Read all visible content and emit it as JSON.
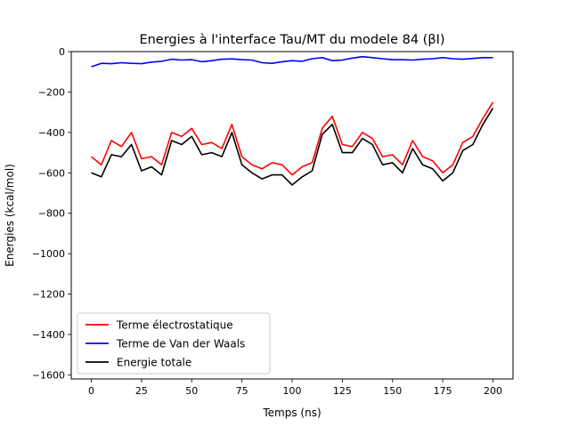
{
  "chart_data": {
    "type": "line",
    "title": "Energies à l'interface Tau/MT du modele 84 (βI)",
    "xlabel": "Temps (ns)",
    "ylabel": "Energies (kcal/mol)",
    "xlim": [
      -10,
      210
    ],
    "ylim": [
      -1620,
      0
    ],
    "xticks": [
      0,
      25,
      50,
      75,
      100,
      125,
      150,
      175,
      200
    ],
    "yticks": [
      0,
      -200,
      -400,
      -600,
      -800,
      -1000,
      -1200,
      -1400,
      -1600
    ],
    "xtick_labels": [
      "0",
      "25",
      "50",
      "75",
      "100",
      "125",
      "150",
      "175",
      "200"
    ],
    "ytick_labels": [
      "0",
      "−200",
      "−400",
      "−600",
      "−800",
      "−1000",
      "−1200",
      "−1400",
      "−1600"
    ],
    "grid": false,
    "legend_position": "lower-left",
    "series": [
      {
        "name": "Terme électrostatique",
        "color": "#ff0000",
        "x": [
          0,
          5,
          10,
          15,
          20,
          25,
          30,
          35,
          40,
          45,
          50,
          55,
          60,
          65,
          70,
          75,
          80,
          85,
          90,
          95,
          100,
          105,
          110,
          115,
          120,
          125,
          130,
          135,
          140,
          145,
          150,
          155,
          160,
          165,
          170,
          175,
          180,
          185,
          190,
          195,
          200
        ],
        "y": [
          -520,
          -560,
          -440,
          -470,
          -400,
          -530,
          -520,
          -560,
          -400,
          -420,
          -380,
          -460,
          -450,
          -480,
          -360,
          -520,
          -560,
          -580,
          -550,
          -560,
          -610,
          -570,
          -550,
          -380,
          -320,
          -460,
          -470,
          -400,
          -430,
          -520,
          -510,
          -560,
          -440,
          -520,
          -540,
          -600,
          -560,
          -450,
          -420,
          -330,
          -250
        ]
      },
      {
        "name": "Terme de Van der Waals",
        "color": "#0000ff",
        "x": [
          0,
          5,
          10,
          15,
          20,
          25,
          30,
          35,
          40,
          45,
          50,
          55,
          60,
          65,
          70,
          75,
          80,
          85,
          90,
          95,
          100,
          105,
          110,
          115,
          120,
          125,
          130,
          135,
          140,
          145,
          150,
          155,
          160,
          165,
          170,
          175,
          180,
          185,
          190,
          195,
          200
        ],
        "y": [
          -75,
          -58,
          -60,
          -55,
          -58,
          -60,
          -52,
          -48,
          -38,
          -42,
          -40,
          -50,
          -45,
          -38,
          -36,
          -40,
          -42,
          -55,
          -58,
          -50,
          -45,
          -48,
          -35,
          -30,
          -45,
          -42,
          -32,
          -25,
          -30,
          -35,
          -40,
          -40,
          -42,
          -38,
          -35,
          -30,
          -35,
          -38,
          -34,
          -30,
          -30
        ]
      },
      {
        "name": "Energie totale",
        "color": "#000000",
        "x": [
          0,
          5,
          10,
          15,
          20,
          25,
          30,
          35,
          40,
          45,
          50,
          55,
          60,
          65,
          70,
          75,
          80,
          85,
          90,
          95,
          100,
          105,
          110,
          115,
          120,
          125,
          130,
          135,
          140,
          145,
          150,
          155,
          160,
          165,
          170,
          175,
          180,
          185,
          190,
          195,
          200
        ],
        "y": [
          -600,
          -620,
          -510,
          -520,
          -460,
          -590,
          -570,
          -610,
          -440,
          -460,
          -420,
          -510,
          -500,
          -520,
          -400,
          -560,
          -600,
          -630,
          -610,
          -610,
          -660,
          -620,
          -590,
          -410,
          -360,
          -500,
          -500,
          -430,
          -460,
          -560,
          -550,
          -600,
          -480,
          -560,
          -580,
          -640,
          -600,
          -490,
          -460,
          -360,
          -280
        ]
      }
    ]
  }
}
